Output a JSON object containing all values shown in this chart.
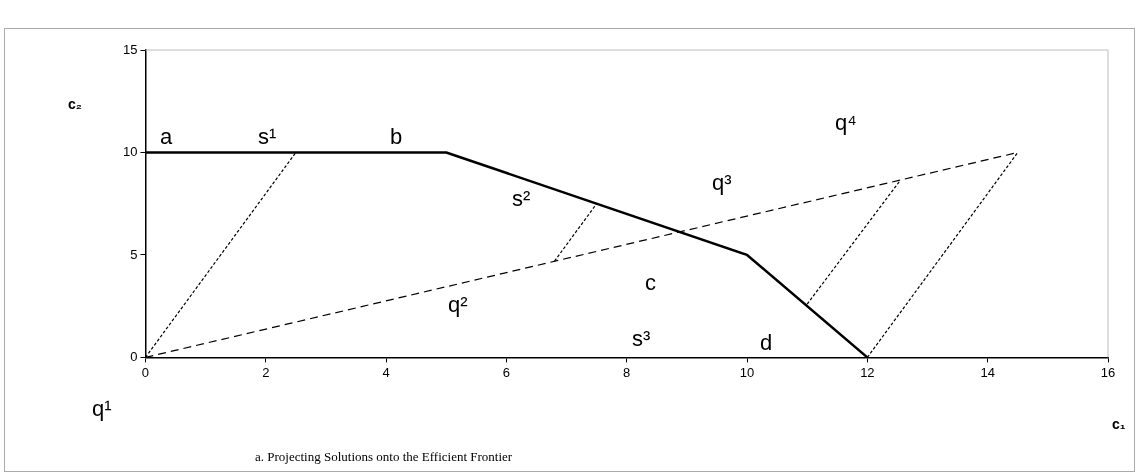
{
  "chart_data": {
    "type": "line",
    "xlabel": "c₁",
    "ylabel": "c₂",
    "xlim": [
      0,
      16
    ],
    "xticks": [
      0,
      2,
      4,
      6,
      8,
      10,
      12,
      14,
      16
    ],
    "ylim": [
      0,
      15
    ],
    "yticks": [
      0,
      5,
      10,
      15
    ],
    "grid": false,
    "legend": false,
    "marker": "none",
    "series": [
      {
        "color": "#000000",
        "line_style": "solid",
        "x": [
          0,
          5,
          10,
          12
        ],
        "values": [
          10,
          10,
          5,
          0
        ]
      },
      {
        "color": "#000000",
        "line_style": "dashed",
        "x": [
          0,
          14.5
        ],
        "values": [
          0,
          10
        ]
      },
      {
        "color": "#000000",
        "line_style": "dotted",
        "x": [
          0,
          2.5
        ],
        "values": [
          0,
          10
        ]
      },
      {
        "color": "#000000",
        "line_style": "dotted",
        "x": [
          6.8,
          7.5
        ],
        "values": [
          4.7,
          7.5
        ]
      },
      {
        "color": "#000000",
        "line_style": "dotted",
        "x": [
          11,
          12.55
        ],
        "values": [
          2.6,
          8.65
        ]
      },
      {
        "color": "#000000",
        "line_style": "dotted",
        "x": [
          12,
          14.5
        ],
        "values": [
          0,
          10
        ]
      }
    ],
    "annotations": [
      "a",
      "s¹",
      "b",
      "s²",
      "q²",
      "c",
      "s³",
      "d",
      "q³",
      "q⁴",
      "q¹",
      "a. Projecting Solutions onto the Efficient Frontier"
    ]
  }
}
